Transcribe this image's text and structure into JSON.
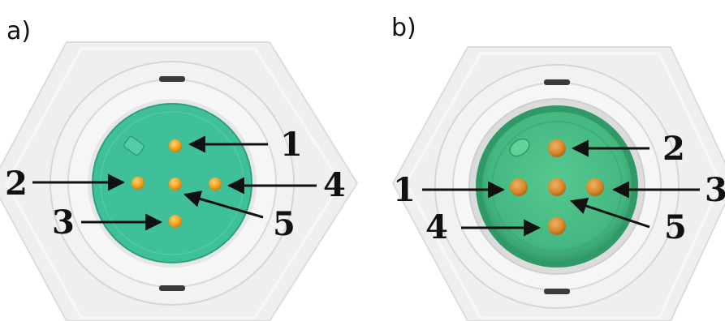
{
  "panels": [
    {
      "label": "a)",
      "pins": [
        {
          "number": "1"
        },
        {
          "number": "2"
        },
        {
          "number": "3"
        },
        {
          "number": "4"
        },
        {
          "number": "5"
        }
      ]
    },
    {
      "label": "b)",
      "pins": [
        {
          "number": "1"
        },
        {
          "number": "2"
        },
        {
          "number": "3"
        },
        {
          "number": "4"
        },
        {
          "number": "5"
        }
      ]
    }
  ],
  "colors": {
    "insulator_a": "#3fbf9a",
    "insulator_b": "#4cc08c",
    "pin_a": "#f2a01a",
    "pin_b": "#d98a2a",
    "housing": "#ececec",
    "arrow": "#111111"
  }
}
